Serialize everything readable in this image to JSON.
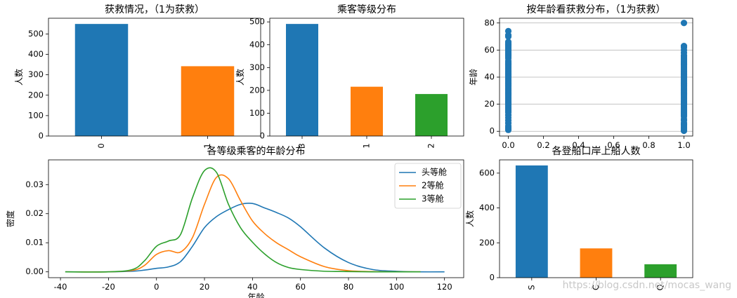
{
  "watermark": "https://blog.csdn.net/mocas_wang",
  "chart_data": [
    {
      "id": "survived",
      "type": "bar",
      "title": "获救情况，（1为获救）",
      "ylabel": "人数",
      "categories": [
        "0",
        "1"
      ],
      "values": [
        549,
        342
      ],
      "colors": [
        "#1f77b4",
        "#ff7f0e"
      ],
      "ylim": [
        0,
        577
      ],
      "yticks": [
        0,
        100,
        200,
        300,
        400,
        500
      ]
    },
    {
      "id": "pclass",
      "type": "bar",
      "title": "乘客等级分布",
      "ylabel": "人数",
      "categories": [
        "3",
        "1",
        "2"
      ],
      "values": [
        491,
        216,
        184
      ],
      "colors": [
        "#1f77b4",
        "#ff7f0e",
        "#2ca02c"
      ],
      "ylim": [
        0,
        516
      ],
      "yticks": [
        0,
        100,
        200,
        300,
        400,
        500
      ]
    },
    {
      "id": "age_scatter",
      "type": "scatter",
      "title": "按年龄看获救分布，（1为获救）",
      "ylabel": "年龄",
      "xlim": [
        -0.05,
        1.05
      ],
      "ylim": [
        -3.5,
        83.5
      ],
      "xticks": [
        "0.0",
        "0.2",
        "0.4",
        "0.6",
        "0.8",
        "1.0"
      ],
      "yticks": [
        0,
        20,
        40,
        60,
        80
      ],
      "grid": "y",
      "color": "#1f77b4",
      "series": [
        {
          "x": 0,
          "y_range": [
            1,
            74
          ],
          "points": [
            1,
            2,
            3,
            4,
            6,
            8,
            10,
            12,
            14,
            15,
            16,
            17,
            18,
            19,
            20,
            21,
            22,
            23,
            24,
            25,
            26,
            27,
            28,
            29,
            30,
            31,
            32,
            33,
            34,
            35,
            36,
            37,
            38,
            39,
            40,
            41,
            42,
            43,
            44,
            45,
            46,
            47,
            48,
            49,
            50,
            51,
            52,
            54,
            55,
            56,
            57,
            58,
            59,
            60,
            61,
            62,
            63,
            64,
            65,
            66,
            70,
            71,
            74
          ]
        },
        {
          "x": 1,
          "y_range": [
            0.4,
            80
          ],
          "points": [
            0.4,
            1,
            2,
            3,
            4,
            5,
            6,
            8,
            9,
            11,
            12,
            13,
            14,
            15,
            16,
            17,
            18,
            19,
            20,
            21,
            22,
            23,
            24,
            25,
            26,
            27,
            28,
            29,
            30,
            31,
            32,
            33,
            34,
            35,
            36,
            37,
            38,
            39,
            40,
            41,
            42,
            43,
            44,
            45,
            46,
            47,
            48,
            49,
            50,
            51,
            52,
            53,
            54,
            55,
            56,
            58,
            60,
            62,
            63,
            80
          ]
        }
      ]
    },
    {
      "id": "age_kde",
      "type": "line",
      "title": "各等级乘客的年龄分布",
      "xlabel": "年龄",
      "ylabel": "密度",
      "xlim": [
        -45,
        128
      ],
      "ylim": [
        -0.002,
        0.0385
      ],
      "xticks": [
        -40,
        -20,
        0,
        20,
        40,
        60,
        80,
        100,
        120
      ],
      "yticks": [
        "0.00",
        "0.01",
        "0.02",
        "0.03"
      ],
      "legend": "top-right",
      "x": [
        -40,
        -20,
        -10,
        -5,
        0,
        5,
        10,
        15,
        20,
        25,
        30,
        35,
        40,
        45,
        50,
        55,
        60,
        70,
        80,
        90,
        100,
        110,
        120
      ],
      "series": [
        {
          "name": "头等舱",
          "color": "#1f77b4",
          "x_range": [
            -38,
            120
          ],
          "values": [
            0,
            0,
            0.0002,
            0.0006,
            0.0012,
            0.0017,
            0.0035,
            0.0088,
            0.0152,
            0.019,
            0.0214,
            0.0232,
            0.0235,
            0.022,
            0.0204,
            0.0185,
            0.0155,
            0.0082,
            0.0032,
            0.0008,
            0.0002,
            0,
            0
          ]
        },
        {
          "name": "2等舱",
          "color": "#ff7f0e",
          "x_range": [
            -38,
            110
          ],
          "values": [
            0,
            0,
            0.0005,
            0.0022,
            0.006,
            0.0073,
            0.0068,
            0.0118,
            0.0232,
            0.0325,
            0.032,
            0.0245,
            0.0175,
            0.0132,
            0.01,
            0.0076,
            0.0052,
            0.0018,
            0.0004,
            0.0001,
            0,
            0,
            0
          ]
        },
        {
          "name": "3等舱",
          "color": "#2ca02c",
          "x_range": [
            -38,
            110
          ],
          "values": [
            0,
            0,
            0.0008,
            0.0038,
            0.0088,
            0.0106,
            0.0128,
            0.0255,
            0.0348,
            0.0342,
            0.0232,
            0.0152,
            0.0102,
            0.0062,
            0.0032,
            0.0015,
            0.0008,
            0.0002,
            0.0001,
            0,
            0,
            0,
            0
          ]
        }
      ]
    },
    {
      "id": "embarked",
      "type": "bar",
      "title": "各登船口岸上船人数",
      "ylabel": "人数",
      "categories": [
        "S",
        "C",
        "Q"
      ],
      "values": [
        644,
        168,
        77
      ],
      "colors": [
        "#1f77b4",
        "#ff7f0e",
        "#2ca02c"
      ],
      "ylim": [
        0,
        676
      ],
      "yticks": [
        0,
        200,
        400,
        600
      ]
    }
  ]
}
